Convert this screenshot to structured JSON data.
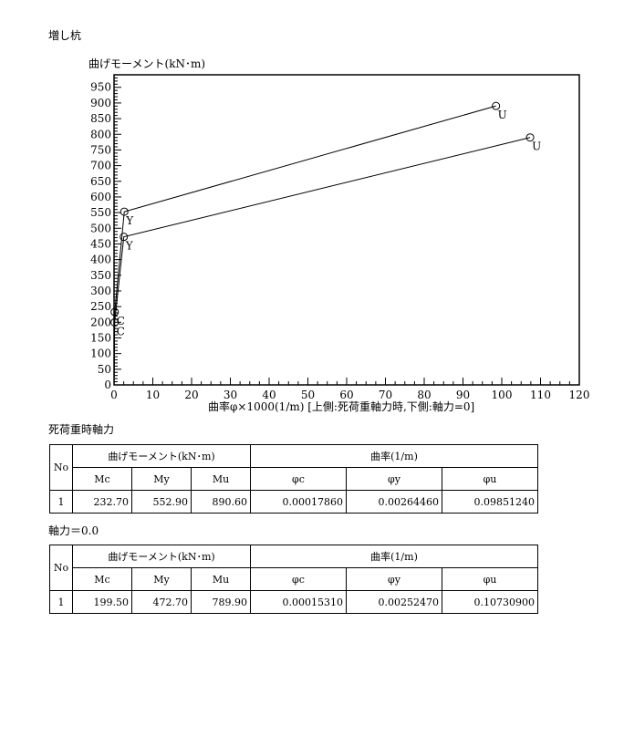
{
  "page_title": "増し杭",
  "chart_data": {
    "type": "line",
    "ylabel": "曲げモーメント(kN･m)",
    "xlabel": "曲率φ×1000(1/m) [上側:死荷重軸力時,下側:軸力=0]",
    "xlim": [
      0,
      120
    ],
    "ylim": [
      0,
      990
    ],
    "xticks": [
      0,
      10,
      20,
      30,
      40,
      50,
      60,
      70,
      80,
      90,
      100,
      110,
      120
    ],
    "yticks": [
      0,
      50,
      100,
      150,
      200,
      250,
      300,
      350,
      400,
      450,
      500,
      550,
      600,
      650,
      700,
      750,
      800,
      850,
      900,
      950
    ],
    "grid": false,
    "series": [
      {
        "points": [
          [
            0,
            0
          ],
          [
            0.1786,
            232.7
          ],
          [
            2.6446,
            552.9
          ],
          [
            98.5124,
            890.6
          ]
        ],
        "labels": [
          "",
          "C",
          "Y",
          "U"
        ]
      },
      {
        "points": [
          [
            0,
            0
          ],
          [
            0.1531,
            199.5
          ],
          [
            2.5247,
            472.7
          ],
          [
            107.309,
            789.9
          ]
        ],
        "labels": [
          "",
          "C",
          "Y",
          "U"
        ]
      }
    ]
  },
  "tables": [
    {
      "caption": "死荷重時軸力",
      "h_no": "No",
      "h_moment": "曲げモーメント(kN･m)",
      "h_curv": "曲率(1/m)",
      "cols": [
        "Mc",
        "My",
        "Mu",
        "φc",
        "φy",
        "φu"
      ],
      "row": [
        "1",
        "232.70",
        "552.90",
        "890.60",
        "0.00017860",
        "0.00264460",
        "0.09851240"
      ]
    },
    {
      "caption": "軸力＝0.0",
      "h_no": "No",
      "h_moment": "曲げモーメント(kN･m)",
      "h_curv": "曲率(1/m)",
      "cols": [
        "Mc",
        "My",
        "Mu",
        "φc",
        "φy",
        "φu"
      ],
      "row": [
        "1",
        "199.50",
        "472.70",
        "789.90",
        "0.00015310",
        "0.00252470",
        "0.10730900"
      ]
    }
  ]
}
